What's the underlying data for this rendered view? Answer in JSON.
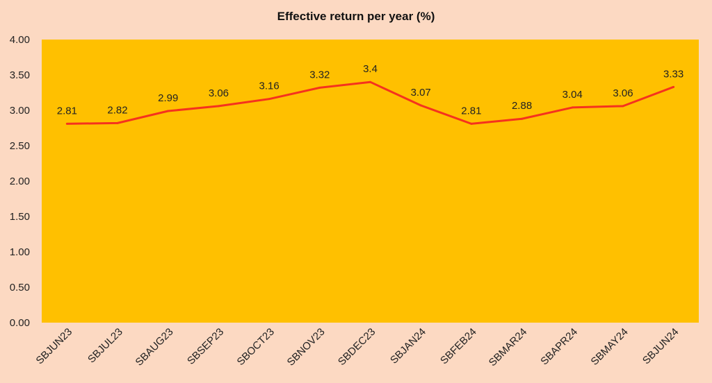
{
  "chart_data": {
    "type": "line",
    "title": "Effective return per year (%)",
    "xlabel": "",
    "ylabel": "",
    "categories": [
      "SBJUN23",
      "SBJUL23",
      "SBAUG23",
      "SBSEP23",
      "SBOCT23",
      "SBNOV23",
      "SBDEC23",
      "SBJAN24",
      "SBFEB24",
      "SBMAR24",
      "SBAPR24",
      "SBMAY24",
      "SBJUN24"
    ],
    "series": [
      {
        "values": [
          2.81,
          2.82,
          2.99,
          3.06,
          3.16,
          3.32,
          3.4,
          3.07,
          2.81,
          2.88,
          3.04,
          3.06,
          3.33
        ]
      }
    ],
    "data_labels": [
      "2.81",
      "2.82",
      "2.99",
      "3.06",
      "3.16",
      "3.32",
      "3.4",
      "3.07",
      "2.81",
      "2.88",
      "3.04",
      "3.06",
      "3.33"
    ],
    "ylim": [
      0,
      4
    ],
    "yticks": [
      "0.00",
      "0.50",
      "1.00",
      "1.50",
      "2.00",
      "2.50",
      "3.00",
      "3.50",
      "4.00"
    ],
    "grid": false,
    "legend": "none",
    "colors": {
      "background": "#FCD9C2",
      "plot_area": "#FFC000",
      "line": "#F5321E"
    }
  }
}
